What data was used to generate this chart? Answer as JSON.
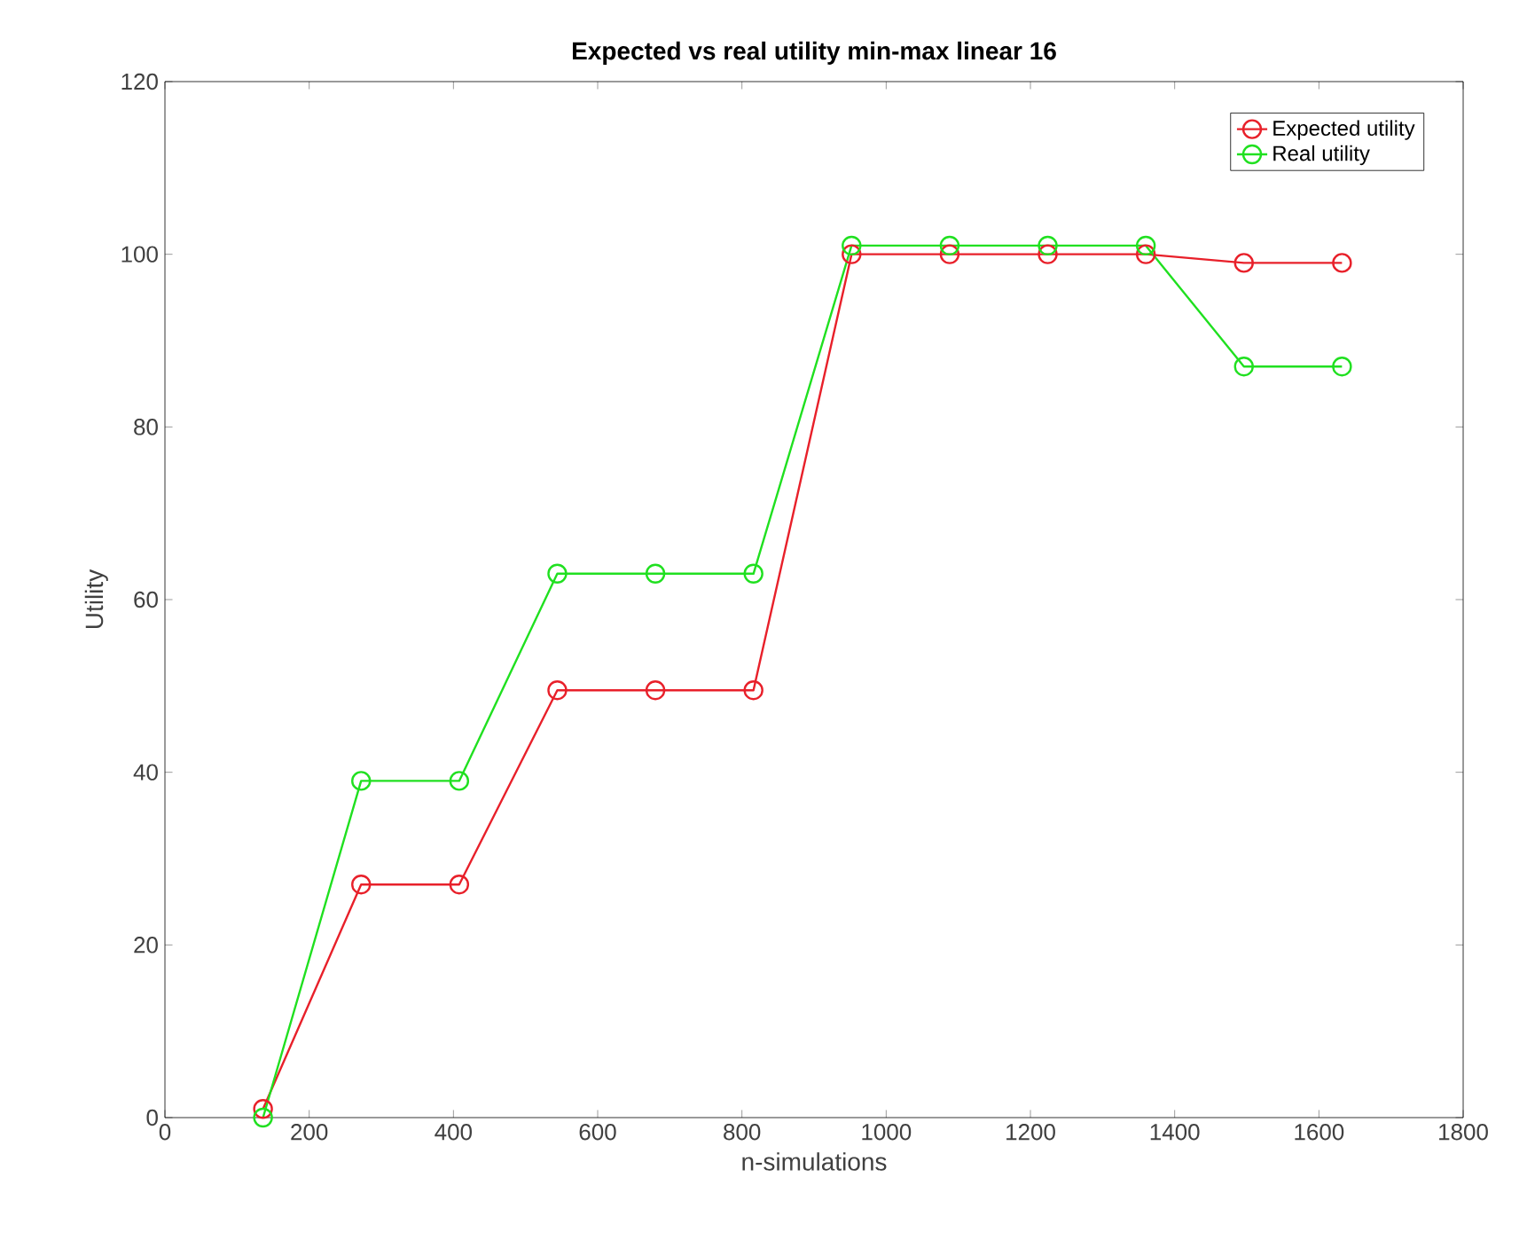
{
  "chart_data": {
    "type": "line",
    "title": "Expected vs real utility min-max linear 16",
    "xlabel": "n-simulations",
    "ylabel": "Utility",
    "x": [
      136,
      272,
      408,
      544,
      680,
      816,
      952,
      1088,
      1224,
      1360,
      1496,
      1632
    ],
    "series": [
      {
        "name": "Expected utility",
        "color": "#e8202a",
        "values": [
          1,
          27,
          27,
          49.5,
          49.5,
          49.5,
          100,
          100,
          100,
          100,
          99,
          99
        ]
      },
      {
        "name": "Real utility",
        "color": "#20e020",
        "values": [
          0,
          39,
          39,
          63,
          63,
          63,
          101,
          101,
          101,
          101,
          87,
          87
        ]
      }
    ],
    "xlim": [
      0,
      1800
    ],
    "xticks": [
      0,
      200,
      400,
      600,
      800,
      1000,
      1200,
      1400,
      1600,
      1800
    ],
    "ylim": [
      0,
      120
    ],
    "yticks": [
      0,
      20,
      40,
      60,
      80,
      100,
      120
    ],
    "marker": "circle",
    "line_style": "solid",
    "legend": "top right",
    "grid": false
  }
}
